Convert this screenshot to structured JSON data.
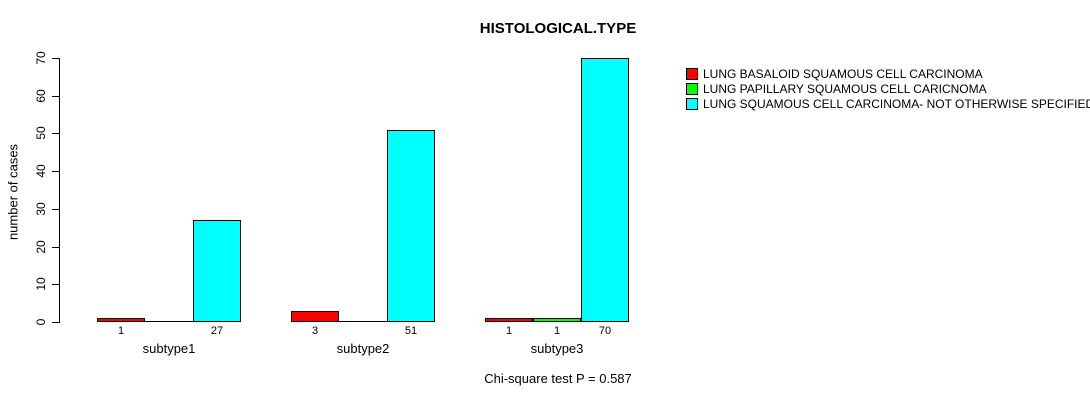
{
  "title": "HISTOLOGICAL.TYPE",
  "footer": "Chi-square test P = 0.587",
  "colors": {
    "background": "#FFFFFF",
    "axis": "#000000",
    "text": "#000000"
  },
  "chart_data": {
    "type": "bar",
    "title": "HISTOLOGICAL.TYPE",
    "xlabel": "",
    "ylabel": "number of cases",
    "ylim": [
      0,
      70
    ],
    "yticks": [
      0,
      10,
      20,
      30,
      40,
      50,
      60,
      70
    ],
    "grid": false,
    "legend_position": "top-right-outside",
    "categories": [
      "subtype1",
      "subtype2",
      "subtype3"
    ],
    "series": [
      {
        "name": "LUNG BASALOID SQUAMOUS CELL CARCINOMA",
        "color": "#FF0000",
        "values": [
          1,
          3,
          1
        ]
      },
      {
        "name": "LUNG PAPILLARY SQUAMOUS CELL CARICNOMA",
        "color": "#00FF00",
        "values": [
          0,
          0,
          1
        ]
      },
      {
        "name": "LUNG SQUAMOUS CELL CARCINOMA- NOT OTHERWISE SPECIFIED",
        "color": "#00FFFF",
        "values": [
          27,
          51,
          70
        ]
      }
    ],
    "bar_value_labels": {
      "subtype1": [
        1,
        null,
        27
      ],
      "subtype2": [
        3,
        null,
        51
      ],
      "subtype3": [
        1,
        1,
        70
      ]
    },
    "annotation": "Chi-square test P = 0.587"
  }
}
